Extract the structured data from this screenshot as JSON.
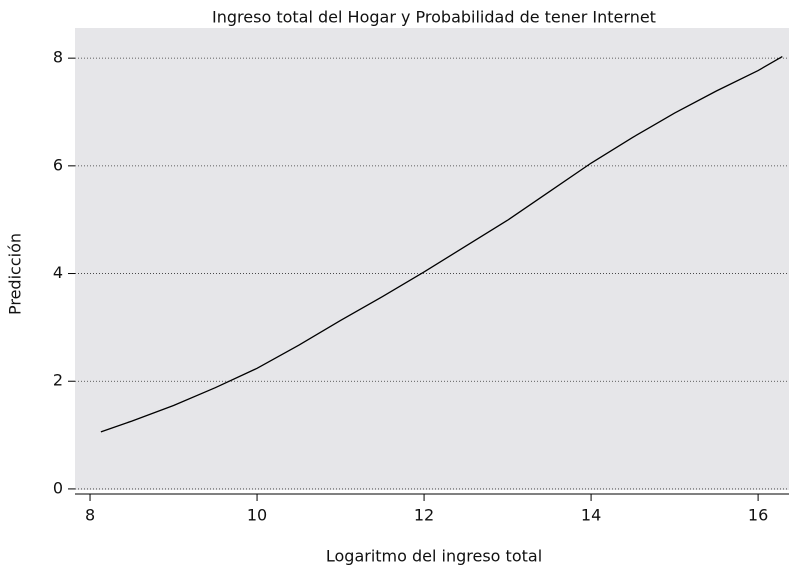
{
  "chart_data": {
    "type": "line",
    "title": "Ingreso total del Hogar y Probabilidad de tener Internet",
    "x_label": "Logaritmo del ingreso total",
    "y_label": "Predicción",
    "x": [
      8.13,
      8.5,
      9,
      9.5,
      10,
      10.5,
      11,
      11.5,
      12,
      12.5,
      13,
      13.5,
      14,
      14.5,
      15,
      15.5,
      16,
      16.29
    ],
    "series": [
      {
        "name": "Predicción",
        "color": "#000000",
        "values": [
          1.06,
          1.26,
          1.55,
          1.88,
          2.24,
          2.67,
          3.13,
          3.57,
          4.03,
          4.51,
          4.99,
          5.52,
          6.05,
          6.53,
          6.98,
          7.39,
          7.77,
          8.03
        ]
      }
    ],
    "xlim": [
      7.82,
      16.37
    ],
    "xticks": [
      8,
      10,
      12,
      14,
      16
    ],
    "ylim": [
      -0.02,
      8.56
    ],
    "yticks": [
      0,
      2,
      4,
      6,
      8
    ],
    "grid": true
  }
}
